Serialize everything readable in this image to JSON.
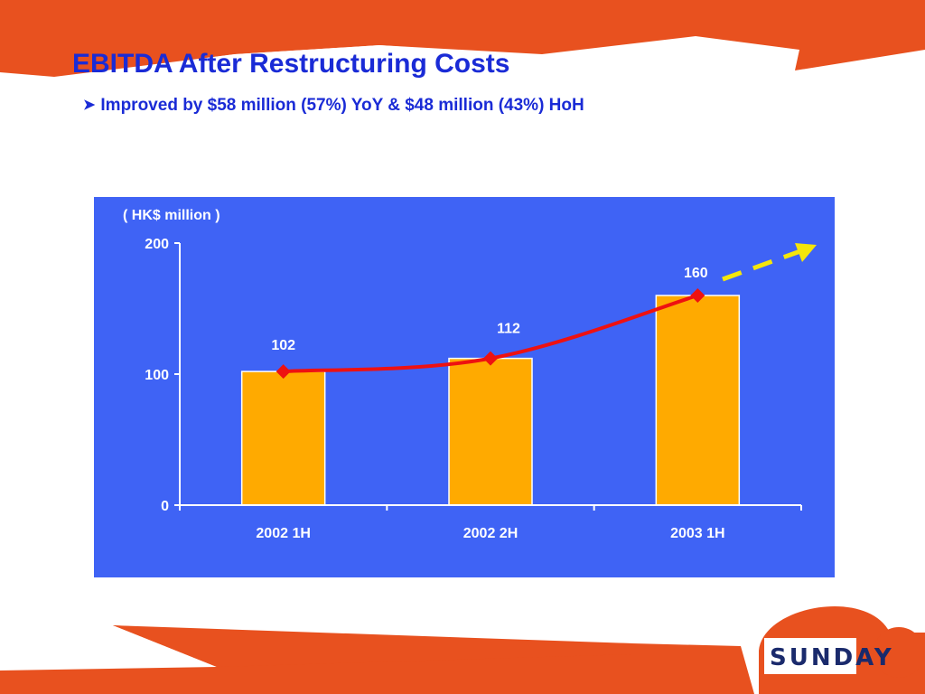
{
  "slide": {
    "title": "EBITDA After Restructuring Costs",
    "subtitle": "Improved by $58 million (57%) YoY & $48 million (43%) HoH",
    "bullet_icon": "arrowhead-bullet-icon",
    "logo_text": "SUNDAY"
  },
  "colors": {
    "accent_orange": "#e8511f",
    "title_blue": "#1a2bd6",
    "panel_blue": "#3f63f5",
    "bar_fill": "#ffaa00",
    "line_red": "#ee1111",
    "trend_yellow": "#f5e60a",
    "axis_white": "#ffffff"
  },
  "chart_data": {
    "type": "bar",
    "categories": [
      "2002 1H",
      "2002 2H",
      "2003 1H"
    ],
    "values": [
      102,
      112,
      160
    ],
    "data_labels": [
      "102",
      "112",
      "160"
    ],
    "unit_label": "( HK$ million )",
    "ylim": [
      0,
      200
    ],
    "y_ticks": [
      0,
      100,
      200
    ],
    "y_tick_labels": [
      "0",
      "100",
      "200"
    ],
    "overlay_line": {
      "type": "line",
      "values": [
        102,
        112,
        160
      ],
      "marker": "diamond"
    },
    "trend_arrow": "dashed-up-arrow",
    "grid": false,
    "legend": "none"
  }
}
